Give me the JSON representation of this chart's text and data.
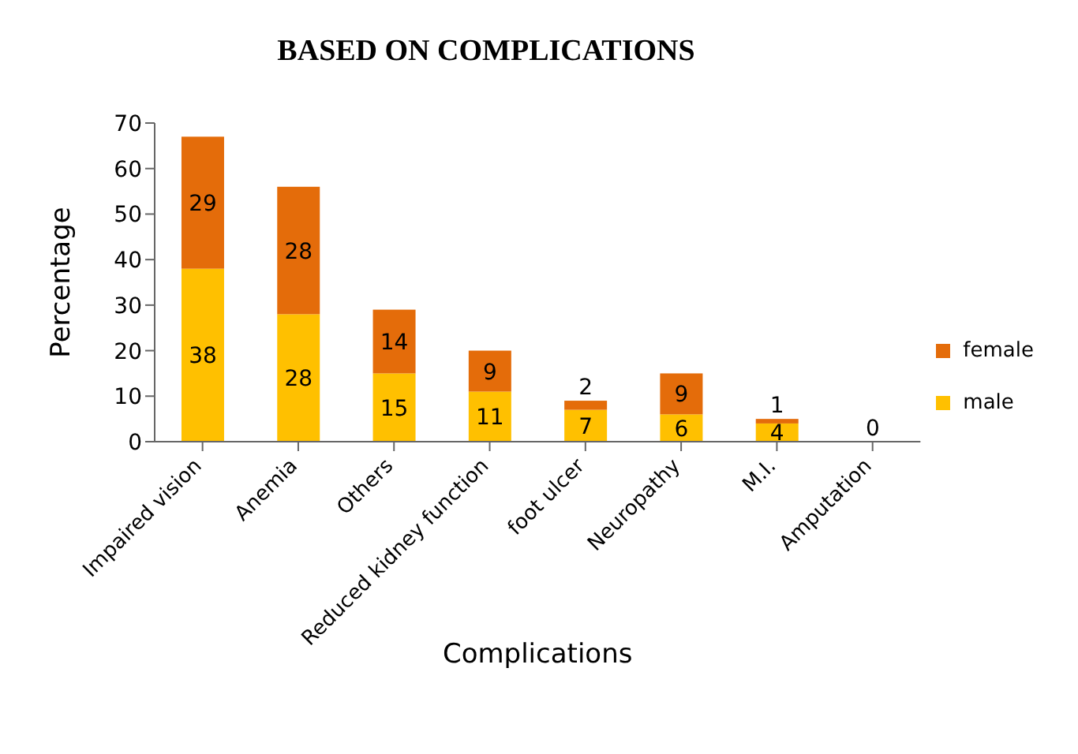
{
  "chart_data": {
    "type": "bar",
    "title": "BASED ON COMPLICATIONS",
    "xlabel": "Complications",
    "ylabel": "Percentage",
    "categories": [
      "Impaired vision",
      "Anemia",
      "Others",
      "Reduced kidney function",
      "foot ulcer",
      "Neuropathy",
      "M.I.",
      "Amputation"
    ],
    "stacked": true,
    "series": [
      {
        "name": "male",
        "color": "#ffc000",
        "values": [
          38,
          28,
          15,
          11,
          7,
          6,
          4,
          0
        ],
        "value_labels": [
          "38",
          "28",
          "15",
          "11",
          "7",
          "6",
          "4",
          "0"
        ]
      },
      {
        "name": "female",
        "color": "#e46c0a",
        "values": [
          29,
          28,
          14,
          9,
          2,
          9,
          1,
          0
        ],
        "value_labels": [
          "29",
          "28",
          "14",
          "9",
          "2",
          "9",
          "1",
          null
        ]
      }
    ],
    "ylim": [
      0,
      70
    ],
    "yticks": [
      0,
      10,
      20,
      30,
      40,
      50,
      60,
      70
    ],
    "grid": false,
    "legend": "right"
  }
}
